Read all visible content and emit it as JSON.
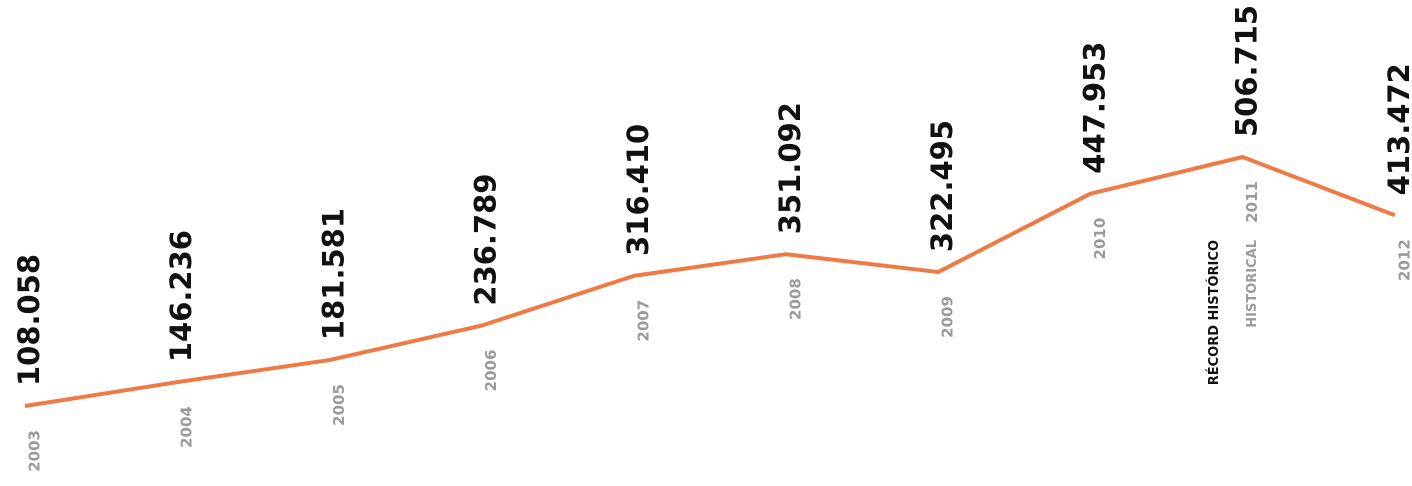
{
  "chart_data": {
    "type": "line",
    "categories": [
      "2003",
      "2004",
      "2005",
      "2006",
      "2007",
      "2008",
      "2009",
      "2010",
      "2011",
      "2012"
    ],
    "values": [
      108058,
      146236,
      181581,
      236789,
      316410,
      351092,
      322495,
      447953,
      506715,
      413472
    ],
    "value_labels": [
      "108.058",
      "146.236",
      "181.581",
      "236.789",
      "316.410",
      "351.092",
      "322.495",
      "447.953",
      "506.715",
      "413.472"
    ],
    "color": "#ee7a45",
    "annotations": [
      "RÉCORD HISTÓRICO",
      "HISTORICAL"
    ]
  }
}
